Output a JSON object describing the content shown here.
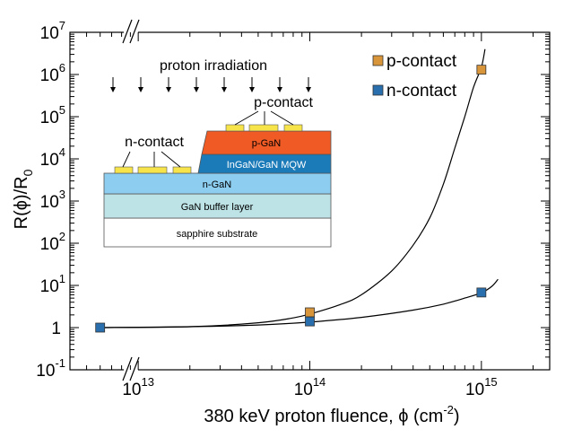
{
  "chart_data": {
    "type": "scatter",
    "xscale": "log",
    "yscale": "log",
    "xlim": [
      4000000000000.0,
      2500000000000000.0
    ],
    "ylim": [
      0.1,
      10000000
    ],
    "xlabel": "380 keV proton fluence, ϕ (cm",
    "xlabel_sup": "-2",
    "xlabel_end": ")",
    "ylabel": "R(ϕ)/R",
    "ylabel_sub": "0",
    "x_ticks": [
      {
        "value": 10000000000000.0,
        "base": "10",
        "exp": "13"
      },
      {
        "value": 100000000000000.0,
        "base": "10",
        "exp": "14"
      },
      {
        "value": 1000000000000000.0,
        "base": "10",
        "exp": "15"
      }
    ],
    "y_ticks": [
      {
        "value": 0.1,
        "base": "10",
        "exp": "-1"
      },
      {
        "value": 1,
        "base": "1",
        "exp": ""
      },
      {
        "value": 10,
        "base": "10",
        "exp": "1"
      },
      {
        "value": 100,
        "base": "10",
        "exp": "2"
      },
      {
        "value": 1000,
        "base": "10",
        "exp": "3"
      },
      {
        "value": 10000,
        "base": "10",
        "exp": "4"
      },
      {
        "value": 100000,
        "base": "10",
        "exp": "5"
      },
      {
        "value": 1000000,
        "base": "10",
        "exp": "6"
      },
      {
        "value": 10000000,
        "base": "10",
        "exp": "7"
      }
    ],
    "series": [
      {
        "name": "p-contact",
        "color": "#d9953a",
        "points": [
          {
            "x": 100000000000000.0,
            "y": 2.3
          },
          {
            "x": 1000000000000000.0,
            "y": 1300000
          }
        ],
        "fit": [
          {
            "x": 6000000000000.0,
            "y": 1.0
          },
          {
            "x": 20000000000000.0,
            "y": 1.05
          },
          {
            "x": 50000000000000.0,
            "y": 1.3
          },
          {
            "x": 80000000000000.0,
            "y": 1.7
          },
          {
            "x": 100000000000000.0,
            "y": 2.1
          },
          {
            "x": 150000000000000.0,
            "y": 3.5
          },
          {
            "x": 200000000000000.0,
            "y": 6
          },
          {
            "x": 300000000000000.0,
            "y": 22
          },
          {
            "x": 400000000000000.0,
            "y": 90
          },
          {
            "x": 500000000000000.0,
            "y": 400
          },
          {
            "x": 600000000000000.0,
            "y": 2500
          },
          {
            "x": 700000000000000.0,
            "y": 18000
          },
          {
            "x": 800000000000000.0,
            "y": 100000
          },
          {
            "x": 900000000000000.0,
            "y": 500000
          },
          {
            "x": 1000000000000000.0,
            "y": 1500000
          },
          {
            "x": 1050000000000000.0,
            "y": 4000000
          }
        ]
      },
      {
        "name": "n-contact",
        "color": "#2a6fad",
        "points": [
          {
            "x": 6000000000000.0,
            "y": 1.0
          },
          {
            "x": 100000000000000.0,
            "y": 1.4
          },
          {
            "x": 1000000000000000.0,
            "y": 6.8
          }
        ],
        "fit": [
          {
            "x": 6000000000000.0,
            "y": 1.0
          },
          {
            "x": 20000000000000.0,
            "y": 1.05
          },
          {
            "x": 50000000000000.0,
            "y": 1.15
          },
          {
            "x": 100000000000000.0,
            "y": 1.35
          },
          {
            "x": 200000000000000.0,
            "y": 1.75
          },
          {
            "x": 400000000000000.0,
            "y": 2.6
          },
          {
            "x": 600000000000000.0,
            "y": 3.6
          },
          {
            "x": 800000000000000.0,
            "y": 5.0
          },
          {
            "x": 1000000000000000.0,
            "y": 6.7
          },
          {
            "x": 1150000000000000.0,
            "y": 9.5
          },
          {
            "x": 1250000000000000.0,
            "y": 14
          }
        ]
      }
    ],
    "legend_position": "top-right",
    "inset": {
      "irradiation_label": "proton irradiation",
      "p_contact_label": "p-contact",
      "n_contact_label": "n-contact",
      "layers": {
        "p_gan": "p-GaN",
        "mqw": "InGaN/GaN MQW",
        "n_gan": "n-GaN",
        "buffer": "GaN buffer layer",
        "substrate": "sapphire substrate"
      },
      "colors": {
        "p_gan": "#ef5a25",
        "mqw": "#1b7ab8",
        "n_gan": "#8ccdf0",
        "buffer": "#bde3e6",
        "substrate": "#ffffff",
        "contact": "#f6e44a"
      }
    }
  }
}
